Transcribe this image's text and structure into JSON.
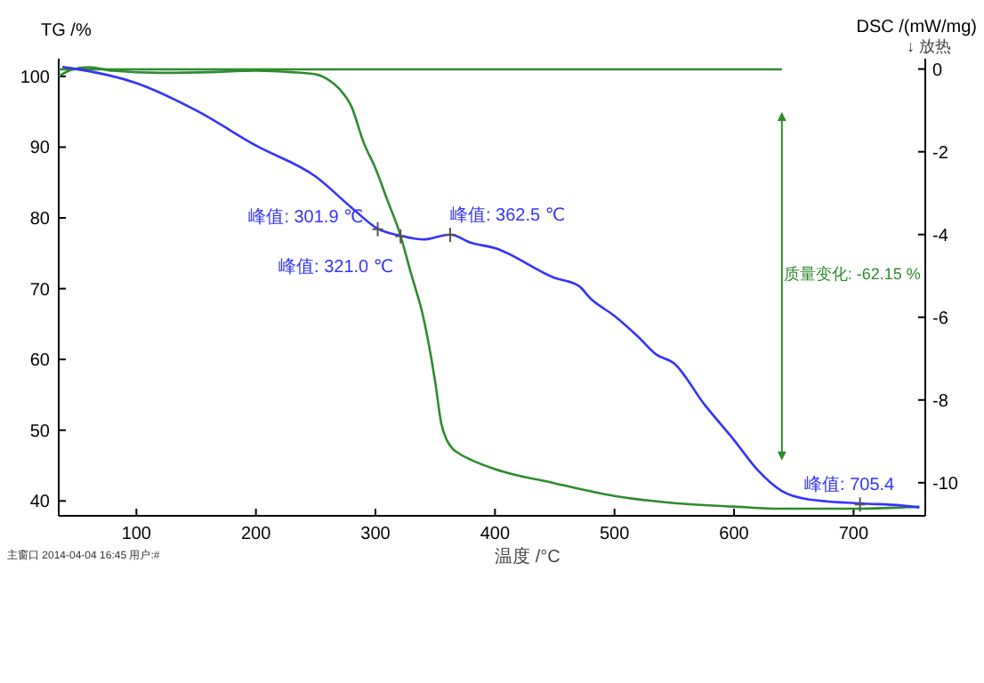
{
  "chart_data": {
    "type": "line",
    "xlabel": "温度 /°C",
    "ylabel": "TG /%",
    "y2label": "DSC /(mW/mg)",
    "subtitle": "↓ 放热",
    "xlim": [
      35,
      760
    ],
    "xticks": [
      100,
      200,
      300,
      400,
      500,
      600,
      700
    ],
    "ylim": [
      37.9,
      102.5
    ],
    "yticks": [
      40,
      50,
      60,
      70,
      80,
      90,
      100
    ],
    "y2lim": [
      -10.8,
      0.25
    ],
    "y2ticks": [
      0,
      -2,
      -4,
      -6,
      -8,
      -10
    ],
    "grid": false,
    "marker": "none",
    "line_style": "solid",
    "series": [
      {
        "color": "#2e8b2e",
        "x": [
          35,
          45,
          60,
          80,
          120,
          160,
          200,
          230,
          250,
          260,
          270,
          280,
          290,
          300,
          310,
          320,
          330,
          340,
          350,
          355,
          360,
          365,
          370,
          380,
          400,
          450,
          500,
          550,
          600,
          640,
          700,
          755
        ],
        "values": [
          100,
          100.9,
          101.3,
          100.8,
          100.5,
          100.6,
          100.8,
          100.6,
          100.3,
          99.6,
          98.2,
          95.7,
          90.7,
          87,
          82.5,
          78,
          72,
          66,
          56.8,
          51,
          48.5,
          47.3,
          46.7,
          45.8,
          44.5,
          42.5,
          40.7,
          39.7,
          39.2,
          38.9,
          38.9,
          39.2
        ]
      },
      {
        "color": "#2e8b2e",
        "x": [
          35,
          640
        ],
        "values": [
          101,
          101
        ]
      },
      {
        "color": "#3333ff",
        "axis": "y2",
        "x": [
          38,
          50,
          100,
          150,
          200,
          250,
          280,
          301.9,
          321,
          340,
          362.5,
          380,
          400,
          450,
          470,
          480,
          500,
          520,
          535,
          550,
          575,
          600,
          620,
          640,
          660,
          705.4,
          740,
          755
        ],
        "values": [
          0.05,
          0,
          -0.34,
          -1,
          -1.85,
          -2.6,
          -3.35,
          -3.86,
          -4.03,
          -4.12,
          -4,
          -4.2,
          -4.33,
          -5.05,
          -5.24,
          -5.55,
          -5.97,
          -6.48,
          -6.9,
          -7.12,
          -8.1,
          -8.97,
          -9.7,
          -10.2,
          -10.39,
          -10.5,
          -10.55,
          -10.6
        ]
      }
    ],
    "annotations": [
      {
        "text": "峰值: 301.9 ℃",
        "x": 301.9,
        "y": 78.4
      },
      {
        "text": "峰值: 321.0 ℃",
        "x": 321,
        "y": 77.4
      },
      {
        "text": "峰值: 362.5 ℃",
        "x": 362.5,
        "y": 77.6
      },
      {
        "text": "峰值: 705.4",
        "x": 705.4,
        "y": 39.5
      },
      "质量变化: -62.15 %",
      "主窗口 2014-04-04 16:45 用户:#"
    ]
  }
}
